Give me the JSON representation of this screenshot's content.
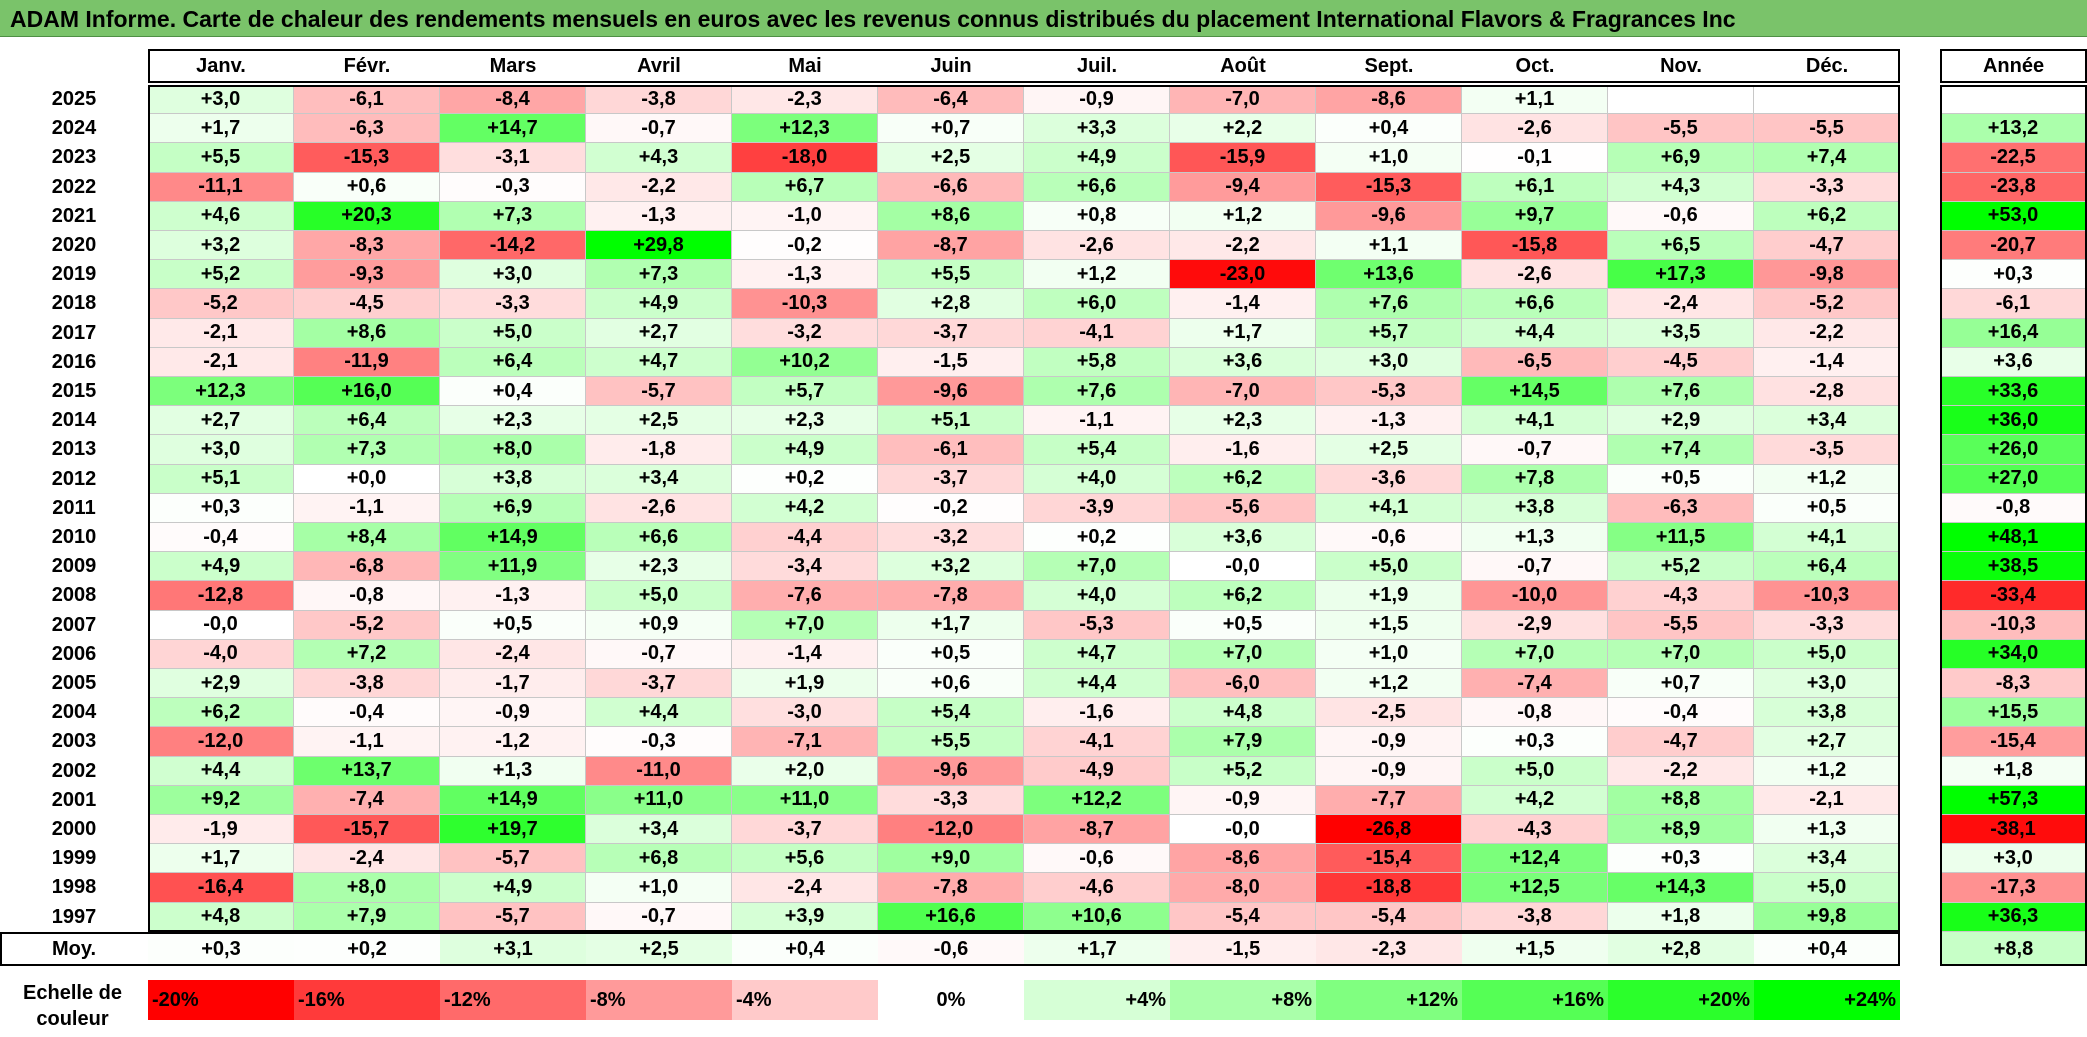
{
  "title": "ADAM Informe. Carte de chaleur des rendements mensuels en euros avec les revenus connus distribués du placement International Flavors & Fragrances Inc",
  "chart_data": {
    "type": "heatmap",
    "months": [
      "Janv.",
      "Févr.",
      "Mars",
      "Avril",
      "Mai",
      "Juin",
      "Juil.",
      "Août",
      "Sept.",
      "Oct.",
      "Nov.",
      "Déc."
    ],
    "year_header": "Année",
    "avg_label": "Moy.",
    "rows": [
      {
        "year": "2025",
        "values": [
          "+3,0",
          "-6,1",
          "-8,4",
          "-3,8",
          "-2,3",
          "-6,4",
          "-0,9",
          "-7,0",
          "-8,6",
          "+1,1",
          "",
          ""
        ],
        "annual": ""
      },
      {
        "year": "2024",
        "values": [
          "+1,7",
          "-6,3",
          "+14,7",
          "-0,7",
          "+12,3",
          "+0,7",
          "+3,3",
          "+2,2",
          "+0,4",
          "-2,6",
          "-5,5",
          "-5,5"
        ],
        "annual": "+13,2"
      },
      {
        "year": "2023",
        "values": [
          "+5,5",
          "-15,3",
          "-3,1",
          "+4,3",
          "-18,0",
          "+2,5",
          "+4,9",
          "-15,9",
          "+1,0",
          "-0,1",
          "+6,9",
          "+7,4"
        ],
        "annual": "-22,5"
      },
      {
        "year": "2022",
        "values": [
          "-11,1",
          "+0,6",
          "-0,3",
          "-2,2",
          "+6,7",
          "-6,6",
          "+6,6",
          "-9,4",
          "-15,3",
          "+6,1",
          "+4,3",
          "-3,3"
        ],
        "annual": "-23,8"
      },
      {
        "year": "2021",
        "values": [
          "+4,6",
          "+20,3",
          "+7,3",
          "-1,3",
          "-1,0",
          "+8,6",
          "+0,8",
          "+1,2",
          "-9,6",
          "+9,7",
          "-0,6",
          "+6,2"
        ],
        "annual": "+53,0"
      },
      {
        "year": "2020",
        "values": [
          "+3,2",
          "-8,3",
          "-14,2",
          "+29,8",
          "-0,2",
          "-8,7",
          "-2,6",
          "-2,2",
          "+1,1",
          "-15,8",
          "+6,5",
          "-4,7"
        ],
        "annual": "-20,7"
      },
      {
        "year": "2019",
        "values": [
          "+5,2",
          "-9,3",
          "+3,0",
          "+7,3",
          "-1,3",
          "+5,5",
          "+1,2",
          "-23,0",
          "+13,6",
          "-2,6",
          "+17,3",
          "-9,8"
        ],
        "annual": "+0,3"
      },
      {
        "year": "2018",
        "values": [
          "-5,2",
          "-4,5",
          "-3,3",
          "+4,9",
          "-10,3",
          "+2,8",
          "+6,0",
          "-1,4",
          "+7,6",
          "+6,6",
          "-2,4",
          "-5,2"
        ],
        "annual": "-6,1"
      },
      {
        "year": "2017",
        "values": [
          "-2,1",
          "+8,6",
          "+5,0",
          "+2,7",
          "-3,2",
          "-3,7",
          "-4,1",
          "+1,7",
          "+5,7",
          "+4,4",
          "+3,5",
          "-2,2"
        ],
        "annual": "+16,4"
      },
      {
        "year": "2016",
        "values": [
          "-2,1",
          "-11,9",
          "+6,4",
          "+4,7",
          "+10,2",
          "-1,5",
          "+5,8",
          "+3,6",
          "+3,0",
          "-6,5",
          "-4,5",
          "-1,4"
        ],
        "annual": "+3,6"
      },
      {
        "year": "2015",
        "values": [
          "+12,3",
          "+16,0",
          "+0,4",
          "-5,7",
          "+5,7",
          "-9,6",
          "+7,6",
          "-7,0",
          "-5,3",
          "+14,5",
          "+7,6",
          "-2,8"
        ],
        "annual": "+33,6"
      },
      {
        "year": "2014",
        "values": [
          "+2,7",
          "+6,4",
          "+2,3",
          "+2,5",
          "+2,3",
          "+5,1",
          "-1,1",
          "+2,3",
          "-1,3",
          "+4,1",
          "+2,9",
          "+3,4"
        ],
        "annual": "+36,0"
      },
      {
        "year": "2013",
        "values": [
          "+3,0",
          "+7,3",
          "+8,0",
          "-1,8",
          "+4,9",
          "-6,1",
          "+5,4",
          "-1,6",
          "+2,5",
          "-0,7",
          "+7,4",
          "-3,5"
        ],
        "annual": "+26,0"
      },
      {
        "year": "2012",
        "values": [
          "+5,1",
          "+0,0",
          "+3,8",
          "+3,4",
          "+0,2",
          "-3,7",
          "+4,0",
          "+6,2",
          "-3,6",
          "+7,8",
          "+0,5",
          "+1,2"
        ],
        "annual": "+27,0"
      },
      {
        "year": "2011",
        "values": [
          "+0,3",
          "-1,1",
          "+6,9",
          "-2,6",
          "+4,2",
          "-0,2",
          "-3,9",
          "-5,6",
          "+4,1",
          "+3,8",
          "-6,3",
          "+0,5"
        ],
        "annual": "-0,8"
      },
      {
        "year": "2010",
        "values": [
          "-0,4",
          "+8,4",
          "+14,9",
          "+6,6",
          "-4,4",
          "-3,2",
          "+0,2",
          "+3,6",
          "-0,6",
          "+1,3",
          "+11,5",
          "+4,1"
        ],
        "annual": "+48,1"
      },
      {
        "year": "2009",
        "values": [
          "+4,9",
          "-6,8",
          "+11,9",
          "+2,3",
          "-3,4",
          "+3,2",
          "+7,0",
          "-0,0",
          "+5,0",
          "-0,7",
          "+5,2",
          "+6,4"
        ],
        "annual": "+38,5"
      },
      {
        "year": "2008",
        "values": [
          "-12,8",
          "-0,8",
          "-1,3",
          "+5,0",
          "-7,6",
          "-7,8",
          "+4,0",
          "+6,2",
          "+1,9",
          "-10,0",
          "-4,3",
          "-10,3"
        ],
        "annual": "-33,4"
      },
      {
        "year": "2007",
        "values": [
          "-0,0",
          "-5,2",
          "+0,5",
          "+0,9",
          "+7,0",
          "+1,7",
          "-5,3",
          "+0,5",
          "+1,5",
          "-2,9",
          "-5,5",
          "-3,3"
        ],
        "annual": "-10,3"
      },
      {
        "year": "2006",
        "values": [
          "-4,0",
          "+7,2",
          "-2,4",
          "-0,7",
          "-1,4",
          "+0,5",
          "+4,7",
          "+7,0",
          "+1,0",
          "+7,0",
          "+7,0",
          "+5,0"
        ],
        "annual": "+34,0"
      },
      {
        "year": "2005",
        "values": [
          "+2,9",
          "-3,8",
          "-1,7",
          "-3,7",
          "+1,9",
          "+0,6",
          "+4,4",
          "-6,0",
          "+1,2",
          "-7,4",
          "+0,7",
          "+3,0"
        ],
        "annual": "-8,3"
      },
      {
        "year": "2004",
        "values": [
          "+6,2",
          "-0,4",
          "-0,9",
          "+4,4",
          "-3,0",
          "+5,4",
          "-1,6",
          "+4,8",
          "-2,5",
          "-0,8",
          "-0,4",
          "+3,8"
        ],
        "annual": "+15,5"
      },
      {
        "year": "2003",
        "values": [
          "-12,0",
          "-1,1",
          "-1,2",
          "-0,3",
          "-7,1",
          "+5,5",
          "-4,1",
          "+7,9",
          "-0,9",
          "+0,3",
          "-4,7",
          "+2,7"
        ],
        "annual": "-15,4"
      },
      {
        "year": "2002",
        "values": [
          "+4,4",
          "+13,7",
          "+1,3",
          "-11,0",
          "+2,0",
          "-9,6",
          "-4,9",
          "+5,2",
          "-0,9",
          "+5,0",
          "-2,2",
          "+1,2"
        ],
        "annual": "+1,8"
      },
      {
        "year": "2001",
        "values": [
          "+9,2",
          "-7,4",
          "+14,9",
          "+11,0",
          "+11,0",
          "-3,3",
          "+12,2",
          "-0,9",
          "-7,7",
          "+4,2",
          "+8,8",
          "-2,1"
        ],
        "annual": "+57,3"
      },
      {
        "year": "2000",
        "values": [
          "-1,9",
          "-15,7",
          "+19,7",
          "+3,4",
          "-3,7",
          "-12,0",
          "-8,7",
          "-0,0",
          "-26,8",
          "-4,3",
          "+8,9",
          "+1,3"
        ],
        "annual": "-38,1"
      },
      {
        "year": "1999",
        "values": [
          "+1,7",
          "-2,4",
          "-5,7",
          "+6,8",
          "+5,6",
          "+9,0",
          "-0,6",
          "-8,6",
          "-15,4",
          "+12,4",
          "+0,3",
          "+3,4"
        ],
        "annual": "+3,0"
      },
      {
        "year": "1998",
        "values": [
          "-16,4",
          "+8,0",
          "+4,9",
          "+1,0",
          "-2,4",
          "-7,8",
          "-4,6",
          "-8,0",
          "-18,8",
          "+12,5",
          "+14,3",
          "+5,0"
        ],
        "annual": "-17,3"
      },
      {
        "year": "1997",
        "values": [
          "+4,8",
          "+7,9",
          "-5,7",
          "-0,7",
          "+3,9",
          "+16,6",
          "+10,6",
          "-5,4",
          "-5,4",
          "-3,8",
          "+1,8",
          "+9,8"
        ],
        "annual": "+36,3"
      }
    ],
    "averages": [
      "+0,3",
      "+0,2",
      "+3,1",
      "+2,5",
      "+0,4",
      "-0,6",
      "+1,7",
      "-1,5",
      "-2,3",
      "+1,5",
      "+2,8",
      "+0,4"
    ],
    "average_annual": "+8,8",
    "color_scale": {
      "title": "Echelle de couleur",
      "stops": [
        {
          "label": "-20%",
          "color": "#ff0000"
        },
        {
          "label": "-16%",
          "color": "#ff3a3a"
        },
        {
          "label": "-12%",
          "color": "#ff6a6a"
        },
        {
          "label": "-8%",
          "color": "#ff9a9a"
        },
        {
          "label": "-4%",
          "color": "#ffcaca"
        },
        {
          "label": "0%",
          "color": "#ffffff"
        },
        {
          "label": "+4%",
          "color": "#d6ffd6"
        },
        {
          "label": "+8%",
          "color": "#aaffaa"
        },
        {
          "label": "+12%",
          "color": "#80ff80"
        },
        {
          "label": "+16%",
          "color": "#55ff55"
        },
        {
          "label": "+20%",
          "color": "#2bff2b"
        },
        {
          "label": "+24%",
          "color": "#00ff00"
        }
      ]
    }
  }
}
